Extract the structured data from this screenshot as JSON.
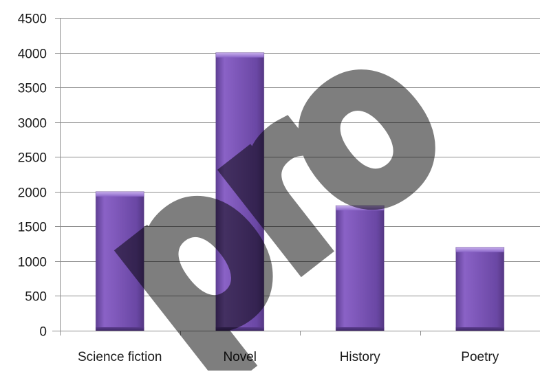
{
  "chart_data": {
    "type": "bar",
    "title": "",
    "xlabel": "",
    "ylabel": "",
    "categories": [
      "Science fiction",
      "Novel",
      "History",
      "Poetry"
    ],
    "values": [
      2000,
      4000,
      1800,
      1200
    ],
    "ylim": [
      0,
      4500
    ],
    "yticks": [
      "0",
      "500",
      "1000",
      "1500",
      "2000",
      "2500",
      "3000",
      "3500",
      "4000",
      "4500"
    ],
    "grid": true,
    "legend": "none"
  },
  "colors": {
    "bar_main": "#7e57b8",
    "bar_light": "#a07fd6",
    "bar_dark": "#5b3c8c",
    "grid": "#8c8c8c",
    "watermark": "#000000"
  },
  "watermark": {
    "text": "pro"
  }
}
